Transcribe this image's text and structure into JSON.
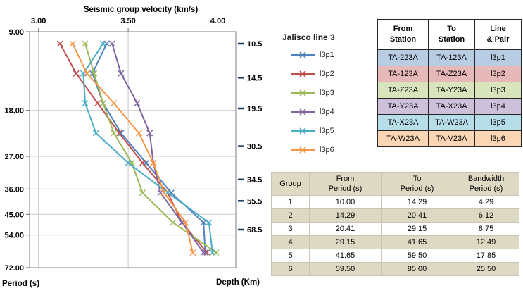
{
  "legend": {
    "title": "Jalisco line 3"
  },
  "chart_data": {
    "type": "line",
    "title": "Seismic group velocity (km/s)",
    "x_axis": {
      "label": "Seismic group velocity (km/s)",
      "position": "top",
      "min": 2.95,
      "max": 4.1,
      "ticks": [
        {
          "v": 3.0,
          "label": "3.00"
        },
        {
          "v": 3.5,
          "label": "3.50"
        },
        {
          "v": 4.0,
          "label": "4.00"
        }
      ]
    },
    "y_axis": {
      "label": "Period (s)",
      "scale": "log",
      "direction": "down",
      "min": 9,
      "max": 72,
      "ticks": [
        {
          "v": 9,
          "label": "9.00"
        },
        {
          "v": 18,
          "label": "18.00"
        },
        {
          "v": 27,
          "label": "27.00"
        },
        {
          "v": 36,
          "label": "36.00"
        },
        {
          "v": 45,
          "label": "45.00"
        },
        {
          "v": 54,
          "label": "54.00"
        },
        {
          "v": 72,
          "label": "72.00"
        }
      ]
    },
    "y2_axis": {
      "label": "Depth (Km)",
      "ticks": [
        {
          "label": "10.5",
          "at_period": 10.0
        },
        {
          "label": "14.5",
          "at_period": 13.5
        },
        {
          "label": "19.5",
          "at_period": 17.7
        },
        {
          "label": "30.5",
          "at_period": 24.7
        },
        {
          "label": "34.5",
          "at_period": 33.1
        },
        {
          "label": "55.5",
          "at_period": 40.0
        },
        {
          "label": "68.5",
          "at_period": 51.5
        }
      ]
    },
    "series": [
      {
        "name": "l3p1",
        "color": "#4F81BD",
        "periods": [
          10,
          13,
          16.9,
          22,
          28.6,
          37.2,
          48.4,
          63
        ],
        "velocities": [
          3.38,
          3.3,
          3.36,
          3.46,
          3.6,
          3.74,
          3.92,
          3.93
        ]
      },
      {
        "name": "l3p2",
        "color": "#C0504D",
        "periods": [
          10,
          13,
          16.9,
          22,
          28.6,
          37.2,
          48.4,
          63
        ],
        "velocities": [
          3.12,
          3.21,
          3.33,
          3.45,
          3.58,
          3.72,
          3.8,
          3.94
        ]
      },
      {
        "name": "l3p3",
        "color": "#9BBB59",
        "periods": [
          10,
          13,
          16.9,
          22,
          28.6,
          37.2,
          48.4,
          63
        ],
        "velocities": [
          3.26,
          3.31,
          3.36,
          3.42,
          3.52,
          3.58,
          3.75,
          3.99
        ]
      },
      {
        "name": "l3p4",
        "color": "#8064A2",
        "periods": [
          10,
          13,
          16.9,
          22,
          28.6,
          37.2,
          48.4,
          63
        ],
        "velocities": [
          3.41,
          3.46,
          3.55,
          3.62,
          3.64,
          3.68,
          3.8,
          3.92
        ]
      },
      {
        "name": "l3p5",
        "color": "#4BACC6",
        "periods": [
          10,
          13,
          16.9,
          22,
          28.6,
          37.2,
          48.4,
          63
        ],
        "velocities": [
          3.36,
          3.25,
          3.26,
          3.32,
          3.5,
          3.72,
          3.95,
          3.97
        ]
      },
      {
        "name": "l3p6",
        "color": "#F79646",
        "periods": [
          10,
          13,
          16.9,
          22,
          28.6,
          37.2,
          48.4,
          63
        ],
        "velocities": [
          3.19,
          3.27,
          3.42,
          3.56,
          3.64,
          3.7,
          3.82,
          3.86
        ]
      }
    ]
  },
  "station_table": {
    "headers": [
      {
        "l1": "From",
        "l2": "Station"
      },
      {
        "l1": "To",
        "l2": "Station"
      },
      {
        "l1": "Line",
        "l2": "& Pair"
      }
    ],
    "rows": [
      {
        "from": "TA-223A",
        "to": "TA-123A",
        "pair": "l3p1",
        "color": "#B8CCE4"
      },
      {
        "from": "TA-123A",
        "to": "TA-Z23A",
        "pair": "l3p2",
        "color": "#E6B8B7"
      },
      {
        "from": "TA-Z23A",
        "to": "TA-Y23A",
        "pair": "l3p3",
        "color": "#D8E4BC"
      },
      {
        "from": "TA-Y23A",
        "to": "TA-X23A",
        "pair": "l3p4",
        "color": "#CCC0DA"
      },
      {
        "from": "TA-X23A",
        "to": "TA-W23A",
        "pair": "l3p5",
        "color": "#B7DEE8"
      },
      {
        "from": "TA-W23A",
        "to": "TA-V23A",
        "pair": "l3p6",
        "color": "#FCD5B4"
      }
    ]
  },
  "group_table": {
    "header_bg": "#DDD9C3",
    "alt_row_bg": "#DDD9C3",
    "headers": [
      {
        "l1": "Group",
        "l2": ""
      },
      {
        "l1": "From",
        "l2": "Period (s)"
      },
      {
        "l1": "To",
        "l2": "Period (s)"
      },
      {
        "l1": "Bandwidth",
        "l2": "Period (s)"
      }
    ],
    "rows": [
      [
        "1",
        "10.00",
        "14.29",
        "4.29"
      ],
      [
        "2",
        "14.29",
        "20.41",
        "6.12"
      ],
      [
        "3",
        "20.41",
        "29.15",
        "8.75"
      ],
      [
        "4",
        "29.15",
        "41.65",
        "12.49"
      ],
      [
        "5",
        "41.65",
        "59.50",
        "17.85"
      ],
      [
        "6",
        "59.50",
        "85.00",
        "25.50"
      ]
    ]
  }
}
